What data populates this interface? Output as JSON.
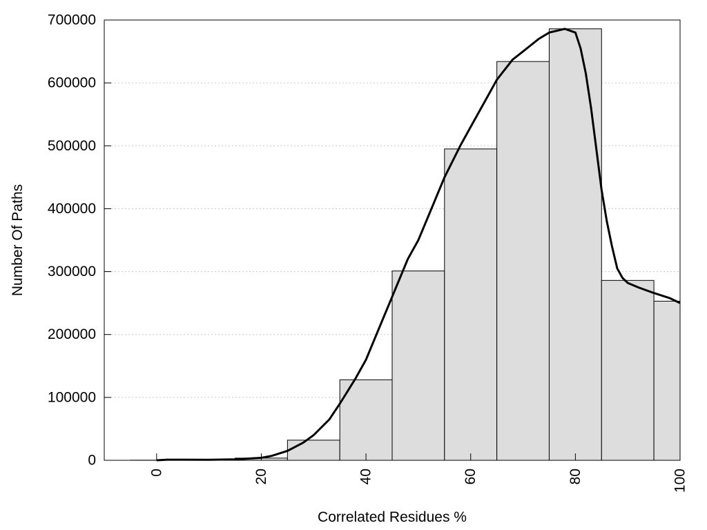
{
  "chart_data": {
    "type": "bar",
    "title": "",
    "xlabel": "Correlated Residues %",
    "ylabel": "Number Of Paths",
    "xlim": [
      -10,
      100
    ],
    "ylim": [
      0,
      700000
    ],
    "x_ticks": [
      0,
      20,
      40,
      60,
      80,
      100
    ],
    "y_ticks": [
      0,
      100000,
      200000,
      300000,
      400000,
      500000,
      600000,
      700000
    ],
    "grid": "horizontal dotted",
    "bar_width": 10,
    "bars": [
      {
        "x": 0,
        "value": 200
      },
      {
        "x": 10,
        "value": 500
      },
      {
        "x": 20,
        "value": 3500
      },
      {
        "x": 30,
        "value": 32000
      },
      {
        "x": 40,
        "value": 128000
      },
      {
        "x": 50,
        "value": 301000
      },
      {
        "x": 60,
        "value": 495000
      },
      {
        "x": 70,
        "value": 634000
      },
      {
        "x": 80,
        "value": 686000
      },
      {
        "x": 90,
        "value": 286000
      },
      {
        "x": 100,
        "value": 253000
      }
    ],
    "curve": {
      "x": [
        0,
        2,
        5,
        10,
        15,
        20,
        22,
        25,
        28,
        30,
        33,
        35,
        38,
        40,
        43,
        45,
        48,
        50,
        53,
        55,
        58,
        60,
        63,
        65,
        68,
        70,
        73,
        75,
        78,
        80,
        81,
        82,
        83,
        84,
        85,
        86,
        87,
        88,
        89,
        90,
        92,
        95,
        98,
        100
      ],
      "y": [
        0,
        1000,
        1000,
        800,
        1500,
        4000,
        7000,
        15000,
        28000,
        40000,
        65000,
        90000,
        130000,
        160000,
        220000,
        260000,
        320000,
        350000,
        410000,
        450000,
        500000,
        530000,
        575000,
        605000,
        637000,
        650000,
        670000,
        680000,
        686000,
        680000,
        655000,
        615000,
        560000,
        495000,
        430000,
        380000,
        340000,
        305000,
        290000,
        282000,
        275000,
        266000,
        258000,
        250000
      ]
    },
    "colors": {
      "bar_fill": "#dddddd",
      "bar_stroke": "#000000",
      "curve": "#000000",
      "grid": "#c8c8c8"
    }
  }
}
